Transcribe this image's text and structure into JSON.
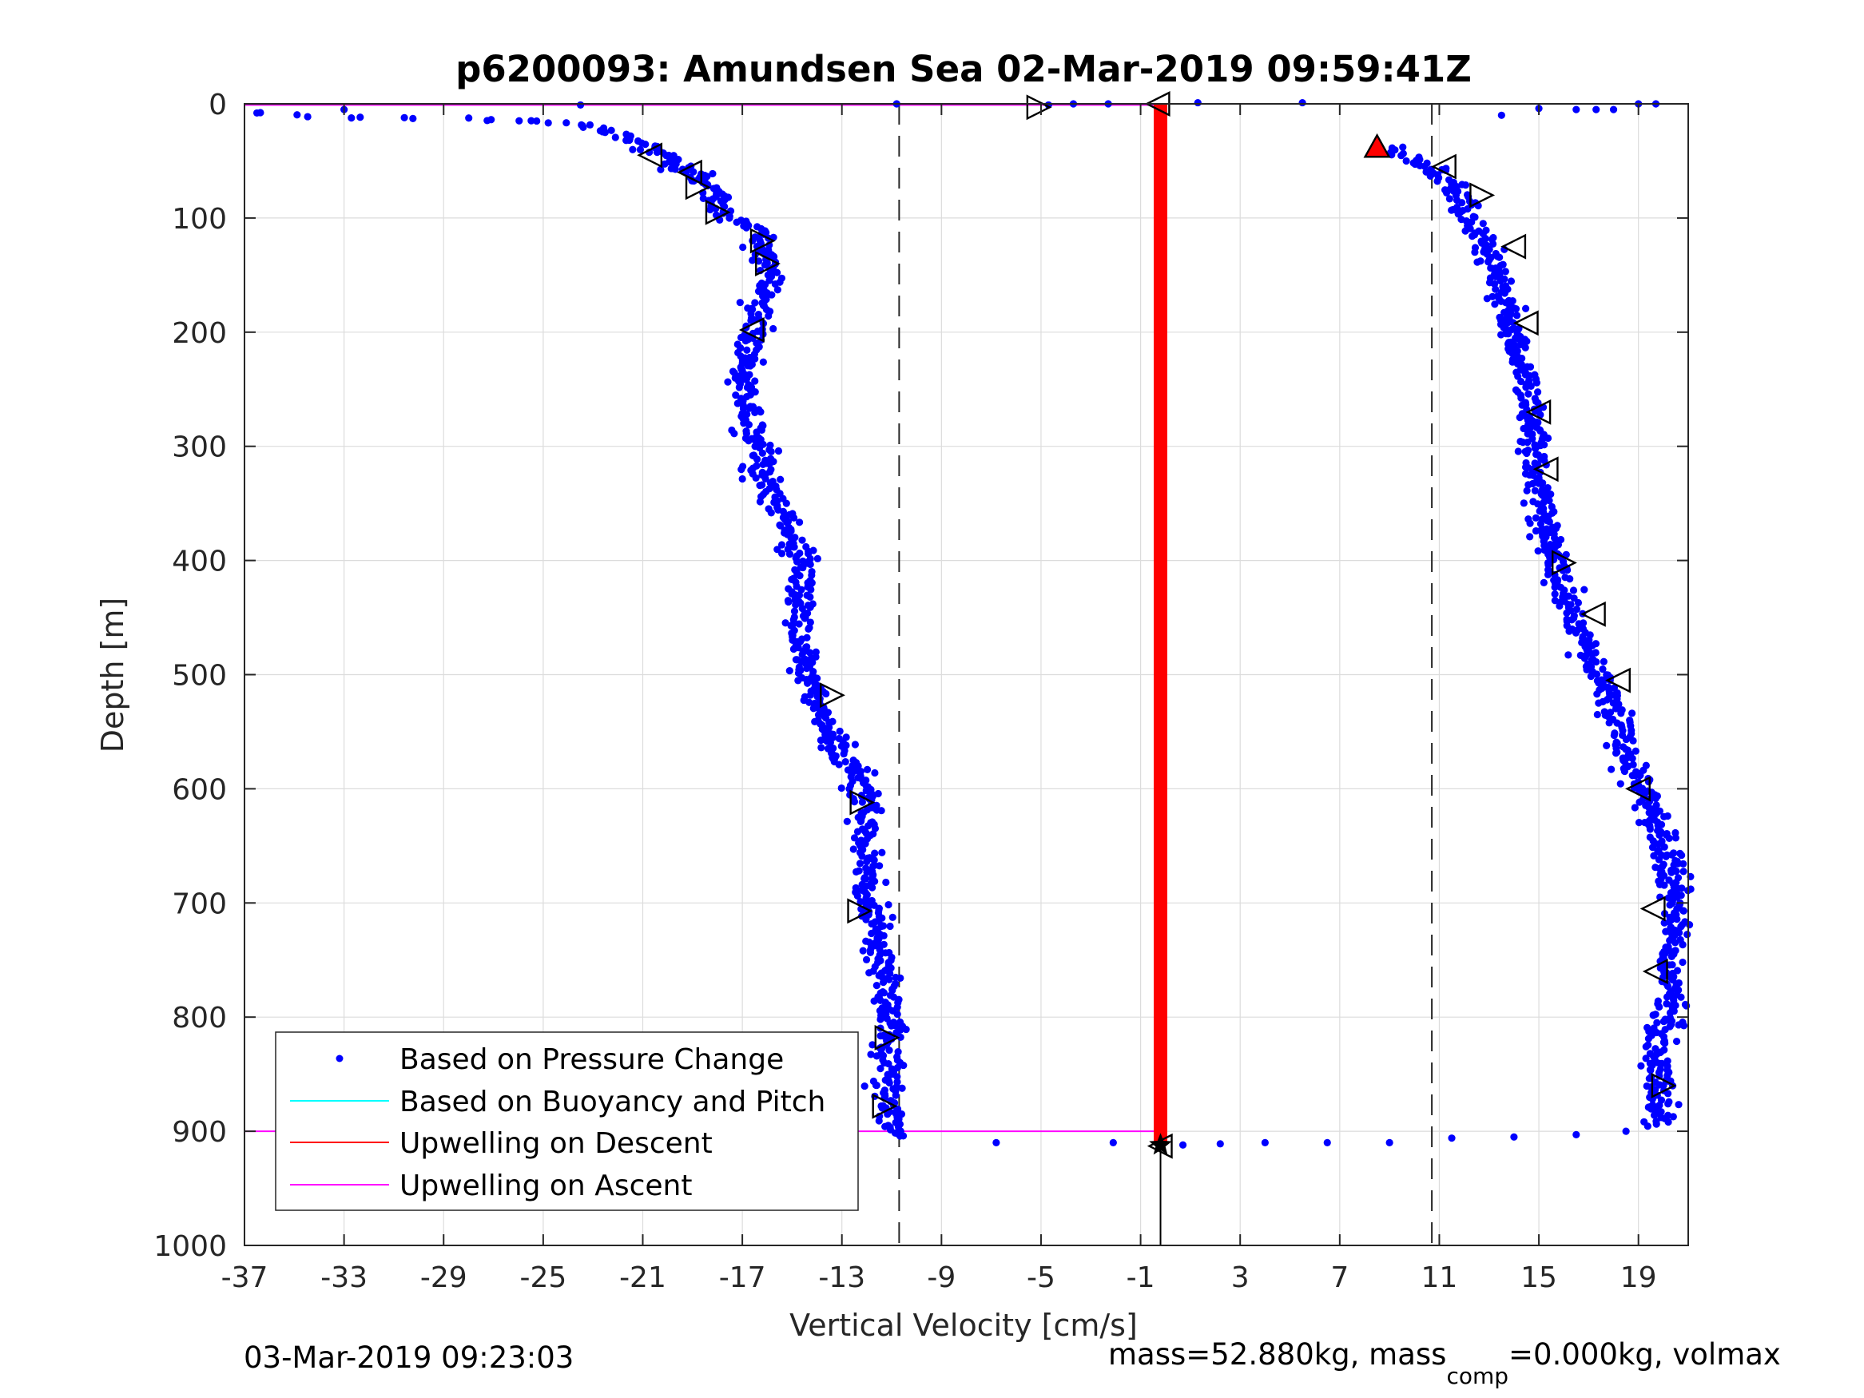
{
  "chart_data": {
    "type": "scatter",
    "title": "p6200093: Amundsen Sea 02-Mar-2019 09:59:41Z",
    "xlabel": "Vertical Velocity [cm/s]",
    "ylabel": "Depth [m]",
    "xlim": [
      -37,
      21
    ],
    "ylim": [
      0,
      1000
    ],
    "y_reversed": true,
    "grid": true,
    "x_ticks": [
      -37,
      -33,
      -29,
      -25,
      -21,
      -17,
      -13,
      -9,
      -5,
      -1,
      3,
      7,
      11,
      15,
      19
    ],
    "y_ticks": [
      0,
      100,
      200,
      300,
      400,
      500,
      600,
      700,
      800,
      900,
      1000
    ],
    "x_tick_labels": [
      "-37",
      "-33",
      "-29",
      "-25",
      "-21",
      "-17",
      "-13",
      "-9",
      "-5",
      "-1",
      "3",
      "7",
      "11",
      "15",
      "19"
    ],
    "y_tick_labels": [
      "0",
      "100",
      "200",
      "300",
      "400",
      "500",
      "600",
      "700",
      "800",
      "900",
      "1000"
    ],
    "dashed_vlines": [
      -10.7,
      10.7
    ],
    "legend": {
      "placement": "bottom-left",
      "entries": [
        {
          "label": "Based on Pressure Change",
          "color": "#0000ff",
          "marker": "dot"
        },
        {
          "label": "Based on Buoyancy and Pitch",
          "color": "#00ffff",
          "marker": "line"
        },
        {
          "label": "Upwelling on Descent",
          "color": "#ff0000",
          "marker": "line"
        },
        {
          "label": "Upwelling on Ascent",
          "color": "#ff00ff",
          "marker": "line"
        }
      ]
    },
    "series": [
      {
        "name": "Based on Pressure Change",
        "color": "#0000ff",
        "descent_profile": [
          [
            -36.5,
            8
          ],
          [
            -33.0,
            12
          ],
          [
            -28.3,
            13
          ],
          [
            -26.3,
            15
          ],
          [
            -24.8,
            16
          ],
          [
            -23.3,
            19
          ],
          [
            -22.2,
            24
          ],
          [
            -21.4,
            32
          ],
          [
            -20.5,
            42
          ],
          [
            -19.8,
            48
          ],
          [
            -19.3,
            58
          ],
          [
            -18.6,
            68
          ],
          [
            -18.2,
            80
          ],
          [
            -17.9,
            93
          ],
          [
            -17.5,
            101
          ],
          [
            -16.6,
            108
          ],
          [
            -16.2,
            122
          ],
          [
            -16.0,
            135
          ],
          [
            -15.8,
            150
          ],
          [
            -16.1,
            175
          ],
          [
            -16.6,
            200
          ],
          [
            -17.0,
            230
          ],
          [
            -16.8,
            260
          ],
          [
            -16.3,
            295
          ],
          [
            -16.2,
            330
          ],
          [
            -15.4,
            360
          ],
          [
            -14.6,
            400
          ],
          [
            -14.7,
            440
          ],
          [
            -14.5,
            480
          ],
          [
            -14.2,
            520
          ],
          [
            -13.3,
            560
          ],
          [
            -12.5,
            590
          ],
          [
            -12.0,
            615
          ],
          [
            -12.1,
            650
          ],
          [
            -12.0,
            700
          ],
          [
            -11.4,
            750
          ],
          [
            -11.1,
            790
          ],
          [
            -11.0,
            830
          ],
          [
            -11.3,
            870
          ],
          [
            -11.0,
            905
          ]
        ],
        "ascent_profile": [
          [
            19.8,
            895
          ],
          [
            19.9,
            860
          ],
          [
            19.7,
            830
          ],
          [
            20.0,
            800
          ],
          [
            20.2,
            770
          ],
          [
            20.5,
            740
          ],
          [
            20.4,
            700
          ],
          [
            20.1,
            660
          ],
          [
            19.7,
            630
          ],
          [
            19.2,
            600
          ],
          [
            18.5,
            570
          ],
          [
            18.2,
            540
          ],
          [
            17.6,
            510
          ],
          [
            17.0,
            480
          ],
          [
            16.4,
            450
          ],
          [
            15.9,
            420
          ],
          [
            15.5,
            380
          ],
          [
            15.0,
            340
          ],
          [
            14.8,
            300
          ],
          [
            14.6,
            260
          ],
          [
            14.3,
            220
          ],
          [
            13.7,
            180
          ],
          [
            13.3,
            150
          ],
          [
            12.8,
            120
          ],
          [
            12.0,
            90
          ],
          [
            11.5,
            70
          ],
          [
            10.2,
            50
          ],
          [
            8.5,
            38
          ]
        ],
        "surface_points": [
          [
            -36.5,
            8
          ],
          [
            -33.0,
            5
          ],
          [
            -23.5,
            1
          ],
          [
            -10.8,
            0
          ],
          [
            -4.7,
            1
          ],
          [
            -3.7,
            0
          ],
          [
            -2.3,
            0
          ],
          [
            1.3,
            -1
          ],
          [
            5.5,
            -1
          ],
          [
            13.5,
            10
          ],
          [
            15.0,
            4
          ],
          [
            16.5,
            5
          ],
          [
            17.3,
            5
          ],
          [
            18.0,
            5
          ],
          [
            19.0,
            0
          ],
          [
            19.7,
            0
          ]
        ],
        "bottom_points": [
          [
            -6.8,
            910
          ],
          [
            -2.1,
            910
          ],
          [
            0.7,
            912
          ],
          [
            2.2,
            911
          ],
          [
            4.0,
            910
          ],
          [
            6.5,
            910
          ],
          [
            9.0,
            910
          ],
          [
            11.5,
            906
          ],
          [
            14.0,
            905
          ],
          [
            16.5,
            903
          ],
          [
            18.5,
            900
          ]
        ]
      },
      {
        "name": "Upwelling on Descent",
        "color": "#ff0000",
        "x": [
          -0.2,
          -0.2
        ],
        "y": [
          0,
          912
        ]
      },
      {
        "name": "Upwelling on Ascent",
        "color": "#ff00ff",
        "lines": [
          {
            "x": [
              -37,
              -0.2
            ],
            "y": [
              1,
              1
            ]
          },
          {
            "x": [
              -37,
              -0.2
            ],
            "y": [
              900,
              900
            ]
          }
        ]
      }
    ],
    "triangle_markers": [
      {
        "x": -5.1,
        "y": 3,
        "dir": "right"
      },
      {
        "x": -0.3,
        "y": 0,
        "dir": "left"
      },
      {
        "x": -20.7,
        "y": 45,
        "dir": "left"
      },
      {
        "x": -19.1,
        "y": 60,
        "dir": "left"
      },
      {
        "x": -18.8,
        "y": 73,
        "dir": "right"
      },
      {
        "x": -18.0,
        "y": 95,
        "dir": "right"
      },
      {
        "x": -16.2,
        "y": 120,
        "dir": "right"
      },
      {
        "x": -16.0,
        "y": 140,
        "dir": "right"
      },
      {
        "x": -16.6,
        "y": 198,
        "dir": "left"
      },
      {
        "x": -13.4,
        "y": 518,
        "dir": "right"
      },
      {
        "x": -12.2,
        "y": 612,
        "dir": "right"
      },
      {
        "x": -12.3,
        "y": 707,
        "dir": "right"
      },
      {
        "x": -11.2,
        "y": 818,
        "dir": "right"
      },
      {
        "x": -11.3,
        "y": 878,
        "dir": "right"
      },
      {
        "x": -0.2,
        "y": 913,
        "dir": "left"
      },
      {
        "x": 11.2,
        "y": 55,
        "dir": "left"
      },
      {
        "x": 12.7,
        "y": 80,
        "dir": "right"
      },
      {
        "x": 14.0,
        "y": 125,
        "dir": "left"
      },
      {
        "x": 14.5,
        "y": 192,
        "dir": "left"
      },
      {
        "x": 15.0,
        "y": 270,
        "dir": "left"
      },
      {
        "x": 15.3,
        "y": 320,
        "dir": "left"
      },
      {
        "x": 16.0,
        "y": 402,
        "dir": "right"
      },
      {
        "x": 17.2,
        "y": 447,
        "dir": "left"
      },
      {
        "x": 18.2,
        "y": 505,
        "dir": "left"
      },
      {
        "x": 19.0,
        "y": 600,
        "dir": "left"
      },
      {
        "x": 19.6,
        "y": 705,
        "dir": "left"
      },
      {
        "x": 19.7,
        "y": 760,
        "dir": "left"
      },
      {
        "x": 20.0,
        "y": 860,
        "dir": "right"
      }
    ],
    "special_markers": [
      {
        "x": 8.5,
        "y": 38,
        "shape": "triangle-up",
        "color": "#ff0000"
      },
      {
        "x": -0.2,
        "y": 912,
        "shape": "star",
        "color": "#000000"
      }
    ],
    "stem_line": {
      "x": -0.2,
      "y": [
        912,
        1000
      ]
    }
  },
  "footer": {
    "timestamp": "03-Mar-2019 09:23:03",
    "mass_text": "mass=52.880kg, mass",
    "mass_sub": "comp",
    "mass_rest": "=0.000kg, volmax"
  }
}
